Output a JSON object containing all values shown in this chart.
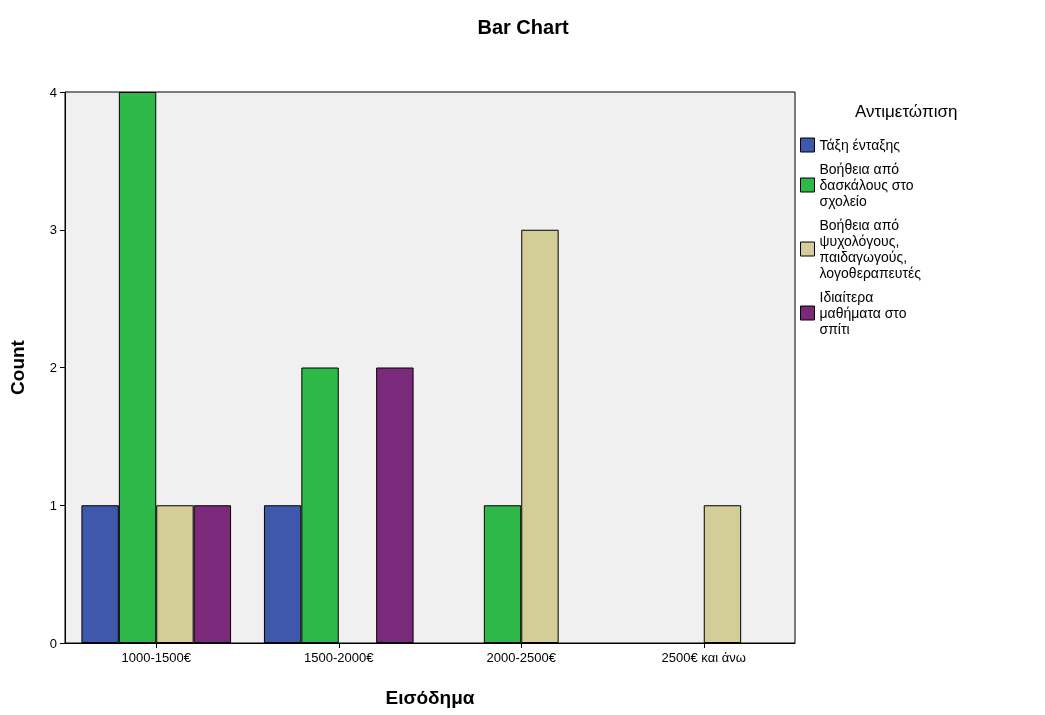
{
  "chart_data": {
    "type": "bar",
    "title": "Bar Chart",
    "xlabel": "Εισόδημα",
    "ylabel": "Count",
    "legend_title": "Αντιμετώπιση",
    "categories": [
      "1000-1500€",
      "1500-2000€",
      "2000-2500€",
      "2500€ και άνω"
    ],
    "series": [
      {
        "name": "Τάξη ένταξης",
        "color": "#3e58ac",
        "values": [
          1,
          1,
          null,
          null
        ]
      },
      {
        "name": "Βοήθεια από δασκάλους στο σχολείο",
        "color": "#2eb848",
        "values": [
          4,
          2,
          1,
          null
        ]
      },
      {
        "name": "Βοήθεια από ψυχολόγους, παιδαγωγούς, λογοθεραπευτές",
        "color": "#d3ce97",
        "values": [
          1,
          null,
          3,
          1
        ]
      },
      {
        "name": "Ιδιαίτερα μαθήματα στο σπίτι",
        "color": "#7b2a7b",
        "values": [
          1,
          2,
          null,
          null
        ]
      }
    ],
    "ylim": [
      0,
      4
    ],
    "yticks": [
      0,
      1,
      2,
      3,
      4
    ],
    "grid": false,
    "legend": "right"
  }
}
